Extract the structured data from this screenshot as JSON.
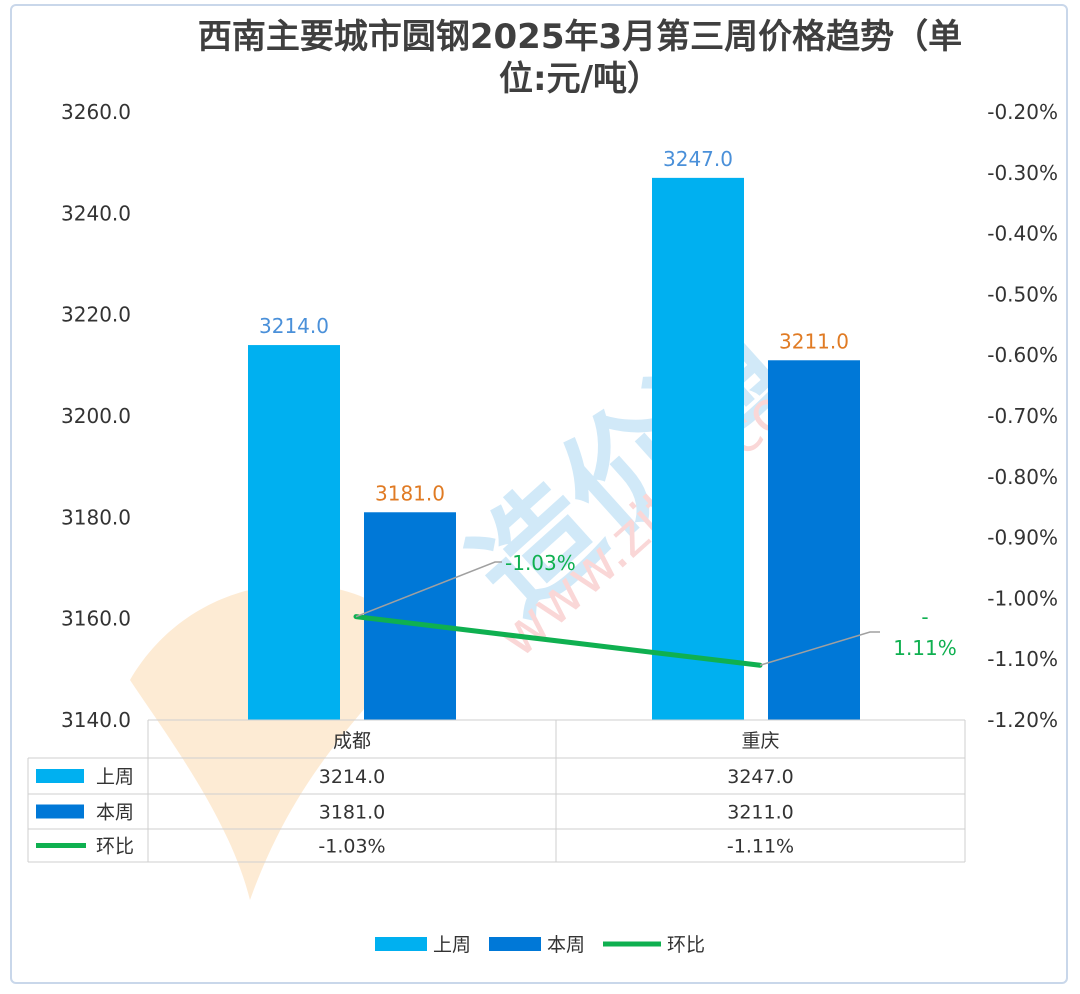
{
  "chart_data": {
    "type": "bar",
    "title": "西南主要城市圆钢2025年3月第三周价格趋势（单位:元/吨）",
    "title_lines": [
      "西南主要城市圆钢2025年3月第三周价格趋势（单",
      "位:元/吨）"
    ],
    "categories": [
      "成都",
      "重庆"
    ],
    "series": [
      {
        "name": "上周",
        "type": "bar",
        "axis": "left",
        "values": [
          3214.0,
          3247.0
        ],
        "labels": [
          "3214.0",
          "3247.0"
        ],
        "color": "#00b0f0",
        "label_color": "#4a90d9"
      },
      {
        "name": "本周",
        "type": "bar",
        "axis": "left",
        "values": [
          3181.0,
          3211.0
        ],
        "labels": [
          "3181.0",
          "3211.0"
        ],
        "color": "#0078d7",
        "label_color": "#e07b24"
      },
      {
        "name": "环比",
        "type": "line",
        "axis": "right",
        "values": [
          -1.03,
          -1.11
        ],
        "labels": [
          "-1.03%",
          "-\n1.11%"
        ],
        "color": "#0fb050",
        "label_color": "#0fb050"
      }
    ],
    "left_axis": {
      "min": 3140,
      "max": 3260,
      "ticks": [
        "3260.0",
        "3240.0",
        "3220.0",
        "3200.0",
        "3180.0",
        "3160.0",
        "3140.0"
      ]
    },
    "right_axis": {
      "min": -1.2,
      "max": -0.2,
      "ticks": [
        "-0.20%",
        "-0.30%",
        "-0.40%",
        "-0.50%",
        "-0.60%",
        "-0.70%",
        "-0.80%",
        "-0.90%",
        "-1.00%",
        "-1.10%",
        "-1.20%"
      ]
    },
    "data_table": {
      "header": [
        "成都",
        "重庆"
      ],
      "rows": [
        {
          "name": "上周",
          "cells": [
            "3214.0",
            "3247.0"
          ]
        },
        {
          "name": "本周",
          "cells": [
            "3181.0",
            "3211.0"
          ]
        },
        {
          "name": "环比",
          "cells": [
            "-1.03%",
            "-1.11%"
          ]
        }
      ]
    },
    "legend": {
      "position": "bottom",
      "items": [
        "上周",
        "本周",
        "环比"
      ]
    },
    "watermark": "造价通 www.zjtcn.com",
    "grid": false
  }
}
